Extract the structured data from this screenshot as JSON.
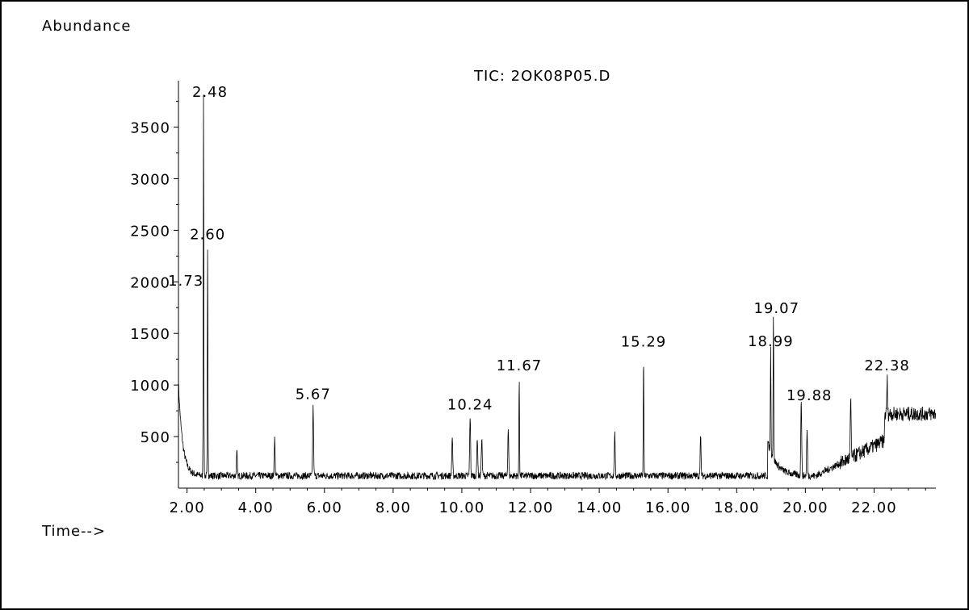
{
  "chart_data": {
    "type": "line",
    "title": "TIC: 2OK08P05.D",
    "ylabel": "Abundance",
    "xlabel": "Time-->",
    "xlim": [
      1.75,
      23.8
    ],
    "ylim": [
      0,
      3950
    ],
    "x_ticks": [
      "2.00",
      "4.00",
      "6.00",
      "8.00",
      "10.00",
      "12.00",
      "14.00",
      "16.00",
      "18.00",
      "20.00",
      "22.00"
    ],
    "x_tick_values": [
      2,
      4,
      6,
      8,
      10,
      12,
      14,
      16,
      18,
      20,
      22
    ],
    "y_ticks": [
      "500",
      "1000",
      "1500",
      "2000",
      "2500",
      "3000",
      "3500"
    ],
    "y_tick_values": [
      500,
      1000,
      1500,
      2000,
      2500,
      3000,
      3500
    ],
    "grid": false,
    "baseline": 120,
    "peaks": [
      {
        "x": 1.73,
        "y": 1900,
        "label": "1.73"
      },
      {
        "x": 2.48,
        "y": 3850,
        "label": "2.48"
      },
      {
        "x": 2.6,
        "y": 2350,
        "label": "2.60"
      },
      {
        "x": 3.45,
        "y": 350,
        "label": ""
      },
      {
        "x": 4.55,
        "y": 480,
        "label": ""
      },
      {
        "x": 5.67,
        "y": 800,
        "label": "5.67"
      },
      {
        "x": 9.72,
        "y": 500,
        "label": ""
      },
      {
        "x": 10.24,
        "y": 700,
        "label": "10.24"
      },
      {
        "x": 10.45,
        "y": 500,
        "label": ""
      },
      {
        "x": 10.58,
        "y": 500,
        "label": ""
      },
      {
        "x": 11.35,
        "y": 580,
        "label": ""
      },
      {
        "x": 11.67,
        "y": 1080,
        "label": "11.67"
      },
      {
        "x": 14.45,
        "y": 540,
        "label": ""
      },
      {
        "x": 15.29,
        "y": 1310,
        "label": "15.29"
      },
      {
        "x": 16.95,
        "y": 500,
        "label": ""
      },
      {
        "x": 18.99,
        "y": 1400,
        "label": "18.99"
      },
      {
        "x": 19.07,
        "y": 1720,
        "label": "19.07"
      },
      {
        "x": 19.88,
        "y": 870,
        "label": "19.88"
      },
      {
        "x": 20.05,
        "y": 560,
        "label": ""
      },
      {
        "x": 21.32,
        "y": 830,
        "label": ""
      },
      {
        "x": 22.38,
        "y": 1080,
        "label": "22.38"
      }
    ]
  }
}
